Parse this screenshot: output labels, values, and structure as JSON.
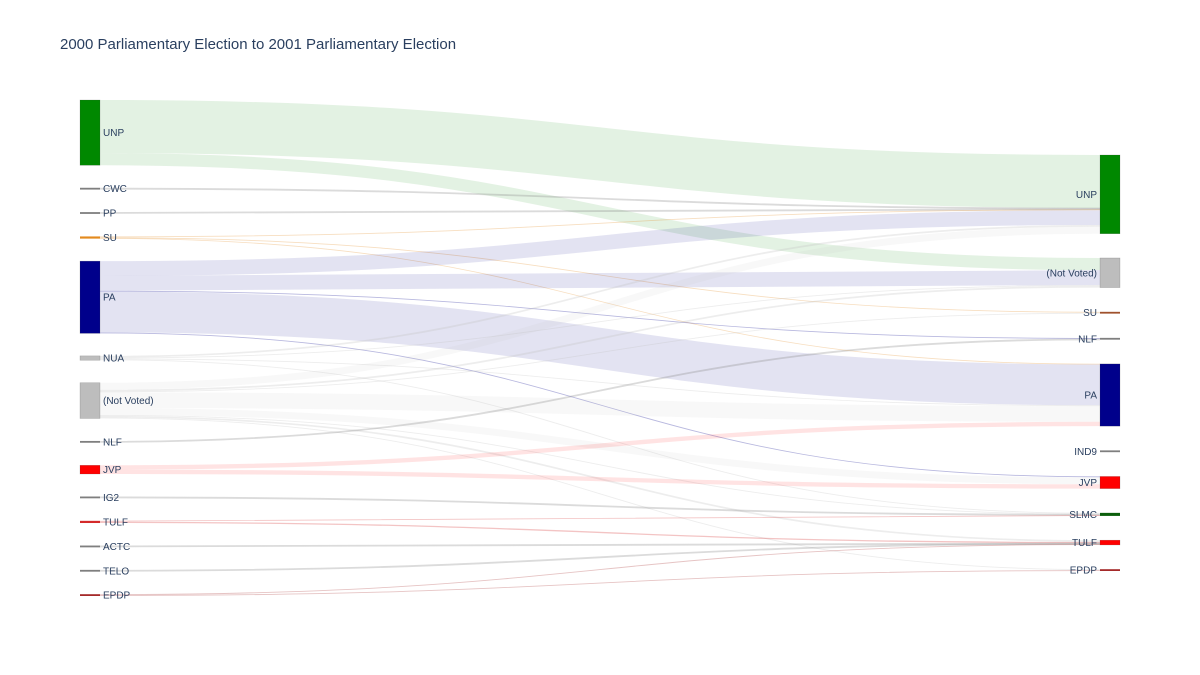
{
  "chart_data": {
    "type": "sankey",
    "title": "2000 Parliamentary Election to 2001 Parliamentary Election",
    "sources": [
      {
        "id": "s_unp",
        "label": "UNP",
        "color": "#008800"
      },
      {
        "id": "s_cwc",
        "label": "CWC",
        "color": "#7f7f7f"
      },
      {
        "id": "s_pp",
        "label": "PP",
        "color": "#7f7f7f"
      },
      {
        "id": "s_su",
        "label": "SU",
        "color": "#e38a1e"
      },
      {
        "id": "s_pa",
        "label": "PA",
        "color": "#00008b"
      },
      {
        "id": "s_nua",
        "label": "NUA",
        "color": "#bdbdbd"
      },
      {
        "id": "s_nv",
        "label": "(Not Voted)",
        "color": "#bdbdbd"
      },
      {
        "id": "s_nlf",
        "label": "NLF",
        "color": "#7f7f7f"
      },
      {
        "id": "s_jvp",
        "label": "JVP",
        "color": "#ff0000"
      },
      {
        "id": "s_ig2",
        "label": "IG2",
        "color": "#7f7f7f"
      },
      {
        "id": "s_tulf",
        "label": "TULF",
        "color": "#d42a2a"
      },
      {
        "id": "s_actc",
        "label": "ACTC",
        "color": "#7f7f7f"
      },
      {
        "id": "s_telo",
        "label": "TELO",
        "color": "#7f7f7f"
      },
      {
        "id": "s_epdp",
        "label": "EPDP",
        "color": "#a52a2a"
      }
    ],
    "targets": [
      {
        "id": "t_unp",
        "label": "UNP",
        "color": "#008800"
      },
      {
        "id": "t_nv",
        "label": "(Not Voted)",
        "color": "#bdbdbd"
      },
      {
        "id": "t_su",
        "label": "SU",
        "color": "#a0522d"
      },
      {
        "id": "t_nlf",
        "label": "NLF",
        "color": "#7f7f7f"
      },
      {
        "id": "t_pa",
        "label": "PA",
        "color": "#00008b"
      },
      {
        "id": "t_ind9",
        "label": "IND9",
        "color": "#7f7f7f"
      },
      {
        "id": "t_jvp",
        "label": "JVP",
        "color": "#ff0000"
      },
      {
        "id": "t_slmc",
        "label": "SLMC",
        "color": "#0b5e0b"
      },
      {
        "id": "t_tulf",
        "label": "TULF",
        "color": "#ff0000"
      },
      {
        "id": "t_epdp",
        "label": "EPDP",
        "color": "#a52a2a"
      }
    ],
    "links": [
      {
        "source": "s_unp",
        "target": "t_unp",
        "value": 61
      },
      {
        "source": "s_unp",
        "target": "t_nv",
        "value": 14
      },
      {
        "source": "s_cwc",
        "target": "t_unp",
        "value": 1
      },
      {
        "source": "s_pp",
        "target": "t_unp",
        "value": 0.5
      },
      {
        "source": "s_su",
        "target": "t_unp",
        "value": 1
      },
      {
        "source": "s_su",
        "target": "t_su",
        "value": 1
      },
      {
        "source": "s_su",
        "target": "t_pa",
        "value": 0.5
      },
      {
        "source": "s_pa",
        "target": "t_unp",
        "value": 17
      },
      {
        "source": "s_pa",
        "target": "t_nv",
        "value": 17
      },
      {
        "source": "s_pa",
        "target": "t_nlf",
        "value": 1
      },
      {
        "source": "s_pa",
        "target": "t_pa",
        "value": 47
      },
      {
        "source": "s_pa",
        "target": "t_jvp",
        "value": 1
      },
      {
        "source": "s_nua",
        "target": "t_unp",
        "value": 2
      },
      {
        "source": "s_nua",
        "target": "t_nv",
        "value": 1
      },
      {
        "source": "s_nua",
        "target": "t_pa",
        "value": 1
      },
      {
        "source": "s_nua",
        "target": "t_slmc",
        "value": 1
      },
      {
        "source": "s_nv",
        "target": "t_unp",
        "value": 8
      },
      {
        "source": "s_nv",
        "target": "t_nv",
        "value": 2
      },
      {
        "source": "s_nv",
        "target": "t_su",
        "value": 1
      },
      {
        "source": "s_nv",
        "target": "t_pa",
        "value": 18
      },
      {
        "source": "s_nv",
        "target": "t_jvp",
        "value": 8
      },
      {
        "source": "s_nv",
        "target": "t_slmc",
        "value": 1
      },
      {
        "source": "s_nv",
        "target": "t_tulf",
        "value": 2
      },
      {
        "source": "s_nv",
        "target": "t_epdp",
        "value": 1
      },
      {
        "source": "s_nlf",
        "target": "t_nlf",
        "value": 0.5
      },
      {
        "source": "s_jvp",
        "target": "t_pa",
        "value": 5
      },
      {
        "source": "s_jvp",
        "target": "t_jvp",
        "value": 5
      },
      {
        "source": "s_ig2",
        "target": "t_slmc",
        "value": 0.5
      },
      {
        "source": "s_tulf",
        "target": "t_slmc",
        "value": 1
      },
      {
        "source": "s_tulf",
        "target": "t_tulf",
        "value": 1.5
      },
      {
        "source": "s_actc",
        "target": "t_tulf",
        "value": 0.5
      },
      {
        "source": "s_telo",
        "target": "t_tulf",
        "value": 0.5
      },
      {
        "source": "s_epdp",
        "target": "t_tulf",
        "value": 1
      },
      {
        "source": "s_epdp",
        "target": "t_epdp",
        "value": 1
      }
    ]
  }
}
